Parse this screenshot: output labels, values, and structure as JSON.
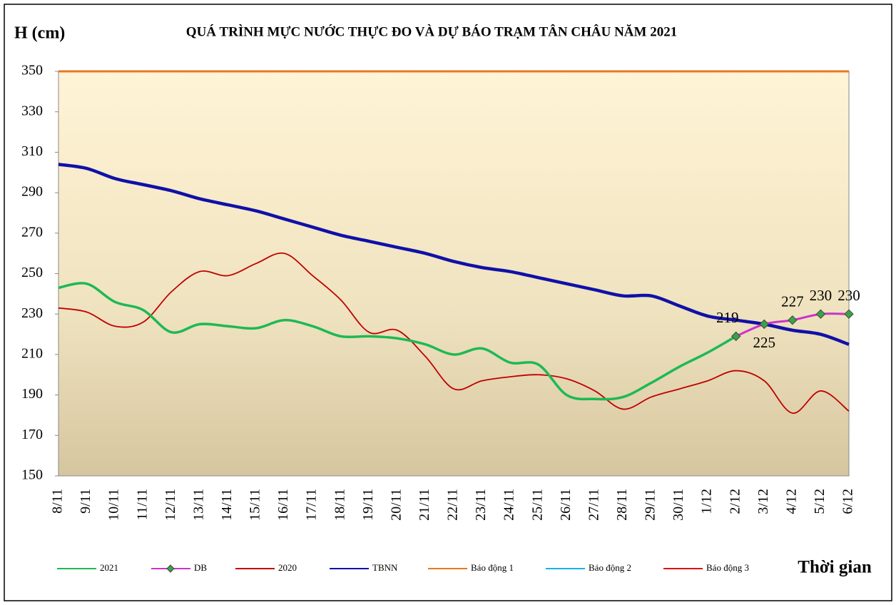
{
  "chart_data": {
    "type": "line",
    "title": "QUÁ TRÌNH MỰC NƯỚC THỰC ĐO VÀ DỰ BÁO TRẠM TÂN CHÂU NĂM 2021",
    "y_label": "H (cm)",
    "x_label": "Thời gian",
    "categories": [
      "8/11",
      "9/11",
      "10/11",
      "11/11",
      "12/11",
      "13/11",
      "14/11",
      "15/11",
      "16/11",
      "17/11",
      "18/11",
      "19/11",
      "20/11",
      "21/11",
      "22/11",
      "23/11",
      "24/11",
      "25/11",
      "26/11",
      "27/11",
      "28/11",
      "29/11",
      "30/11",
      "1/12",
      "2/12",
      "3/12",
      "4/12",
      "5/12",
      "6/12"
    ],
    "ylim": [
      150,
      350
    ],
    "yticks": [
      150,
      170,
      190,
      210,
      230,
      250,
      270,
      290,
      310,
      330,
      350
    ],
    "grid": false,
    "legend": "bottom",
    "series": [
      {
        "name": "2021",
        "color": "#1db954",
        "width": 3.5,
        "values": [
          243,
          245,
          236,
          232,
          221,
          225,
          224,
          223,
          227,
          224,
          219,
          219,
          218,
          215,
          210,
          213,
          206,
          205,
          190,
          188,
          189,
          196,
          204,
          211,
          219,
          null,
          null,
          null,
          null
        ]
      },
      {
        "name": "DB",
        "color": "#cc33cc",
        "width": 3,
        "marker": "diamond",
        "values": [
          null,
          null,
          null,
          null,
          null,
          null,
          null,
          null,
          null,
          null,
          null,
          null,
          null,
          null,
          null,
          null,
          null,
          null,
          null,
          null,
          null,
          null,
          null,
          null,
          219,
          225,
          227,
          230,
          230
        ]
      },
      {
        "name": "2020",
        "color": "#c00000",
        "width": 1.8,
        "values": [
          233,
          231,
          224,
          226,
          241,
          251,
          249,
          255,
          260,
          249,
          237,
          221,
          222,
          209,
          193,
          197,
          199,
          200,
          198,
          192,
          183,
          189,
          193,
          197,
          202,
          197,
          181,
          192,
          182
        ]
      },
      {
        "name": "TBNN",
        "color": "#1010a8",
        "width": 4.5,
        "values": [
          304,
          302,
          297,
          294,
          291,
          287,
          284,
          281,
          277,
          273,
          269,
          266,
          263,
          260,
          256,
          253,
          251,
          248,
          245,
          242,
          239,
          239,
          234,
          229,
          227,
          225,
          222,
          220,
          215
        ]
      },
      {
        "name": "Báo động 1",
        "color": "#e87722",
        "width": 3,
        "values": [
          350,
          350,
          350,
          350,
          350,
          350,
          350,
          350,
          350,
          350,
          350,
          350,
          350,
          350,
          350,
          350,
          350,
          350,
          350,
          350,
          350,
          350,
          350,
          350,
          350,
          350,
          350,
          350,
          350
        ]
      },
      {
        "name": "Báo động 2",
        "color": "#1ab0e8",
        "width": 2
      },
      {
        "name": "Báo động 3",
        "color": "#e01010",
        "width": 2
      }
    ]
  }
}
